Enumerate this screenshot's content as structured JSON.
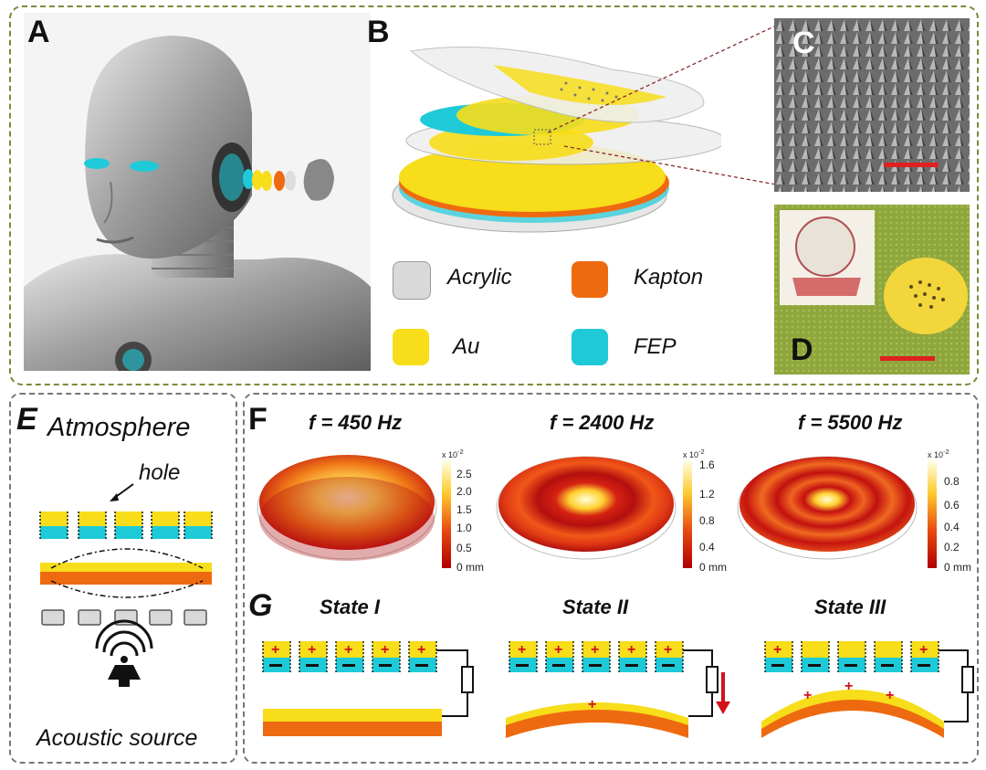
{
  "panels": {
    "a": "A",
    "b": "B",
    "c": "C",
    "d": "D",
    "e": "E",
    "f": "F",
    "g": "G"
  },
  "legend": [
    {
      "label": "Acrylic",
      "color": "#d9d9d9"
    },
    {
      "label": "Kapton",
      "color": "#ee6a10"
    },
    {
      "label": "Au",
      "color": "#f7dd1a"
    },
    {
      "label": "FEP",
      "color": "#1fcad8"
    }
  ],
  "panel_e": {
    "top_label": "Atmosphere",
    "hole_label": "hole",
    "bottom_label": "Acoustic source"
  },
  "panel_f": {
    "modes": [
      {
        "title": "f = 450 Hz",
        "exponent": "x 10",
        "exp_power": "-2",
        "unit": "mm",
        "ticks": [
          "2.5",
          "2.0",
          "1.5",
          "1.0",
          "0.5",
          "0 mm"
        ]
      },
      {
        "title": "f = 2400 Hz",
        "exponent": "x 10",
        "exp_power": "-2",
        "unit": "mm",
        "ticks": [
          "1.6",
          "1.2",
          "0.8",
          "0.4",
          "0 mm"
        ]
      },
      {
        "title": "f = 5500 Hz",
        "exponent": "x 10",
        "exp_power": "-2",
        "unit": "mm",
        "ticks": [
          "0.8",
          "0.6",
          "0.4",
          "0.2",
          "0 mm"
        ]
      }
    ]
  },
  "panel_g": {
    "states": [
      "State I",
      "State II",
      "State III"
    ],
    "plus": "+",
    "minus": "−"
  },
  "colors": {
    "border": "#7a8a3a",
    "border_gray": "#777777",
    "gold": "#f7dd1a",
    "cyan": "#1fcad8",
    "orange": "#ee6a10",
    "red": "#d2111a"
  }
}
